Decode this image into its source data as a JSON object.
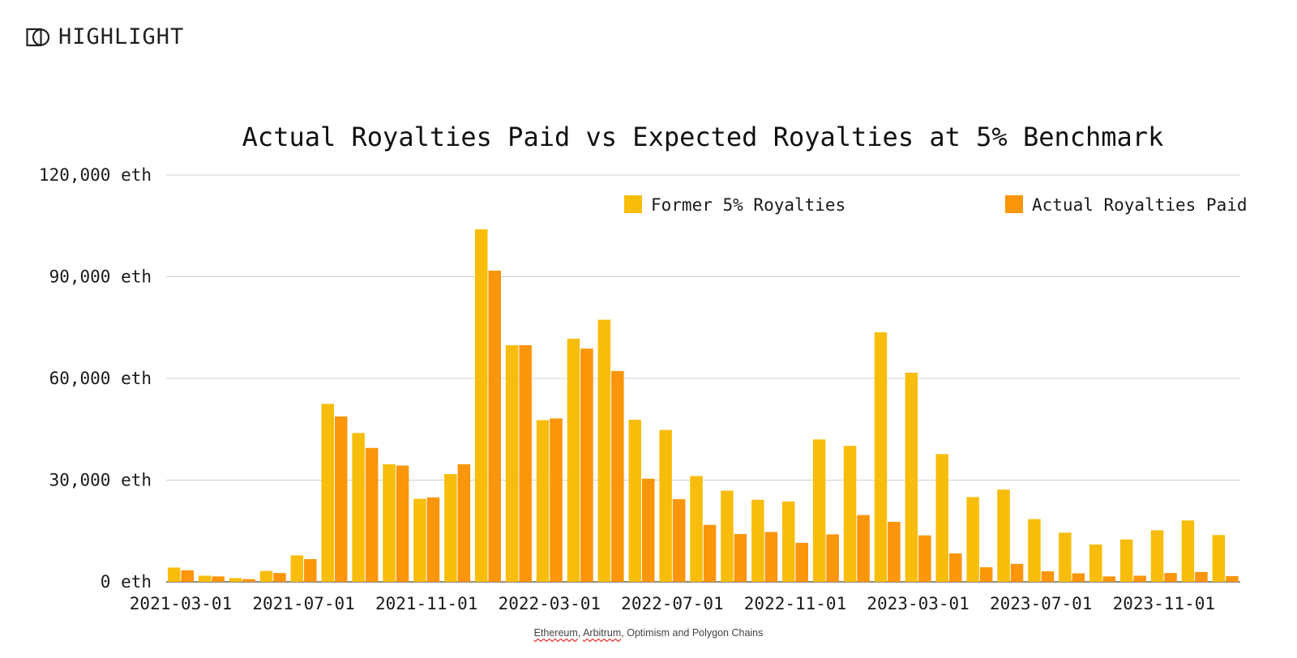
{
  "brand": {
    "name": "HIGHLIGHT",
    "logo_icon": "highlight-logo-icon"
  },
  "chart_data": {
    "type": "bar",
    "title": "Actual Royalties Paid vs Expected Royalties at 5% Benchmark",
    "xlabel": "",
    "ylabel": "",
    "ylim": [
      0,
      120000
    ],
    "yticks": [
      0,
      30000,
      60000,
      90000,
      120000
    ],
    "ytick_labels": [
      "0 eth",
      "30,000 eth",
      "60,000 eth",
      "90,000 eth",
      "120,000 eth"
    ],
    "grid": true,
    "legend_position": "top-right",
    "categories": [
      "2021-03-01",
      "2021-04-01",
      "2021-05-01",
      "2021-06-01",
      "2021-07-01",
      "2021-08-01",
      "2021-09-01",
      "2021-10-01",
      "2021-11-01",
      "2021-12-01",
      "2022-01-01",
      "2022-02-01",
      "2022-03-01",
      "2022-04-01",
      "2022-05-01",
      "2022-06-01",
      "2022-07-01",
      "2022-08-01",
      "2022-09-01",
      "2022-10-01",
      "2022-11-01",
      "2022-12-01",
      "2023-01-01",
      "2023-02-01",
      "2023-03-01",
      "2023-04-01",
      "2023-05-01",
      "2023-06-01",
      "2023-07-01",
      "2023-08-01",
      "2023-09-01",
      "2023-10-01",
      "2023-11-01",
      "2023-12-01",
      "2024-01-01"
    ],
    "xtick_labels": [
      "2021-03-01",
      "2021-07-01",
      "2021-11-01",
      "2022-03-01",
      "2022-07-01",
      "2022-11-01",
      "2023-03-01",
      "2023-07-01",
      "2023-11-01"
    ],
    "series": [
      {
        "name": "Former 5% Royalties",
        "color": "#f7bd0a",
        "values": [
          4200,
          1800,
          1100,
          3200,
          7800,
          52500,
          43900,
          34700,
          24500,
          31800,
          104000,
          69800,
          47700,
          71700,
          77300,
          47800,
          44800,
          31200,
          26900,
          24200,
          23700,
          42000,
          40100,
          73600,
          61700,
          37700,
          25000,
          27200,
          18500,
          14500,
          11000,
          12500,
          15200,
          18100,
          13800
        ]
      },
      {
        "name": "Actual Royalties Paid",
        "color": "#fb9509",
        "values": [
          3400,
          1600,
          800,
          2600,
          6700,
          48800,
          39500,
          34300,
          24900,
          34700,
          91800,
          69800,
          48200,
          68800,
          62200,
          30400,
          24400,
          16800,
          14100,
          14700,
          11500,
          14000,
          19700,
          17700,
          13700,
          8400,
          4300,
          5300,
          3100,
          2500,
          1600,
          1800,
          2600,
          2900,
          1700
        ]
      }
    ]
  },
  "footnote": {
    "chains_a": "Ethereum",
    "chains_b": "Arbitrum",
    "chains_rest": ", Optimism and Polygon Chains",
    "sep": ", "
  }
}
